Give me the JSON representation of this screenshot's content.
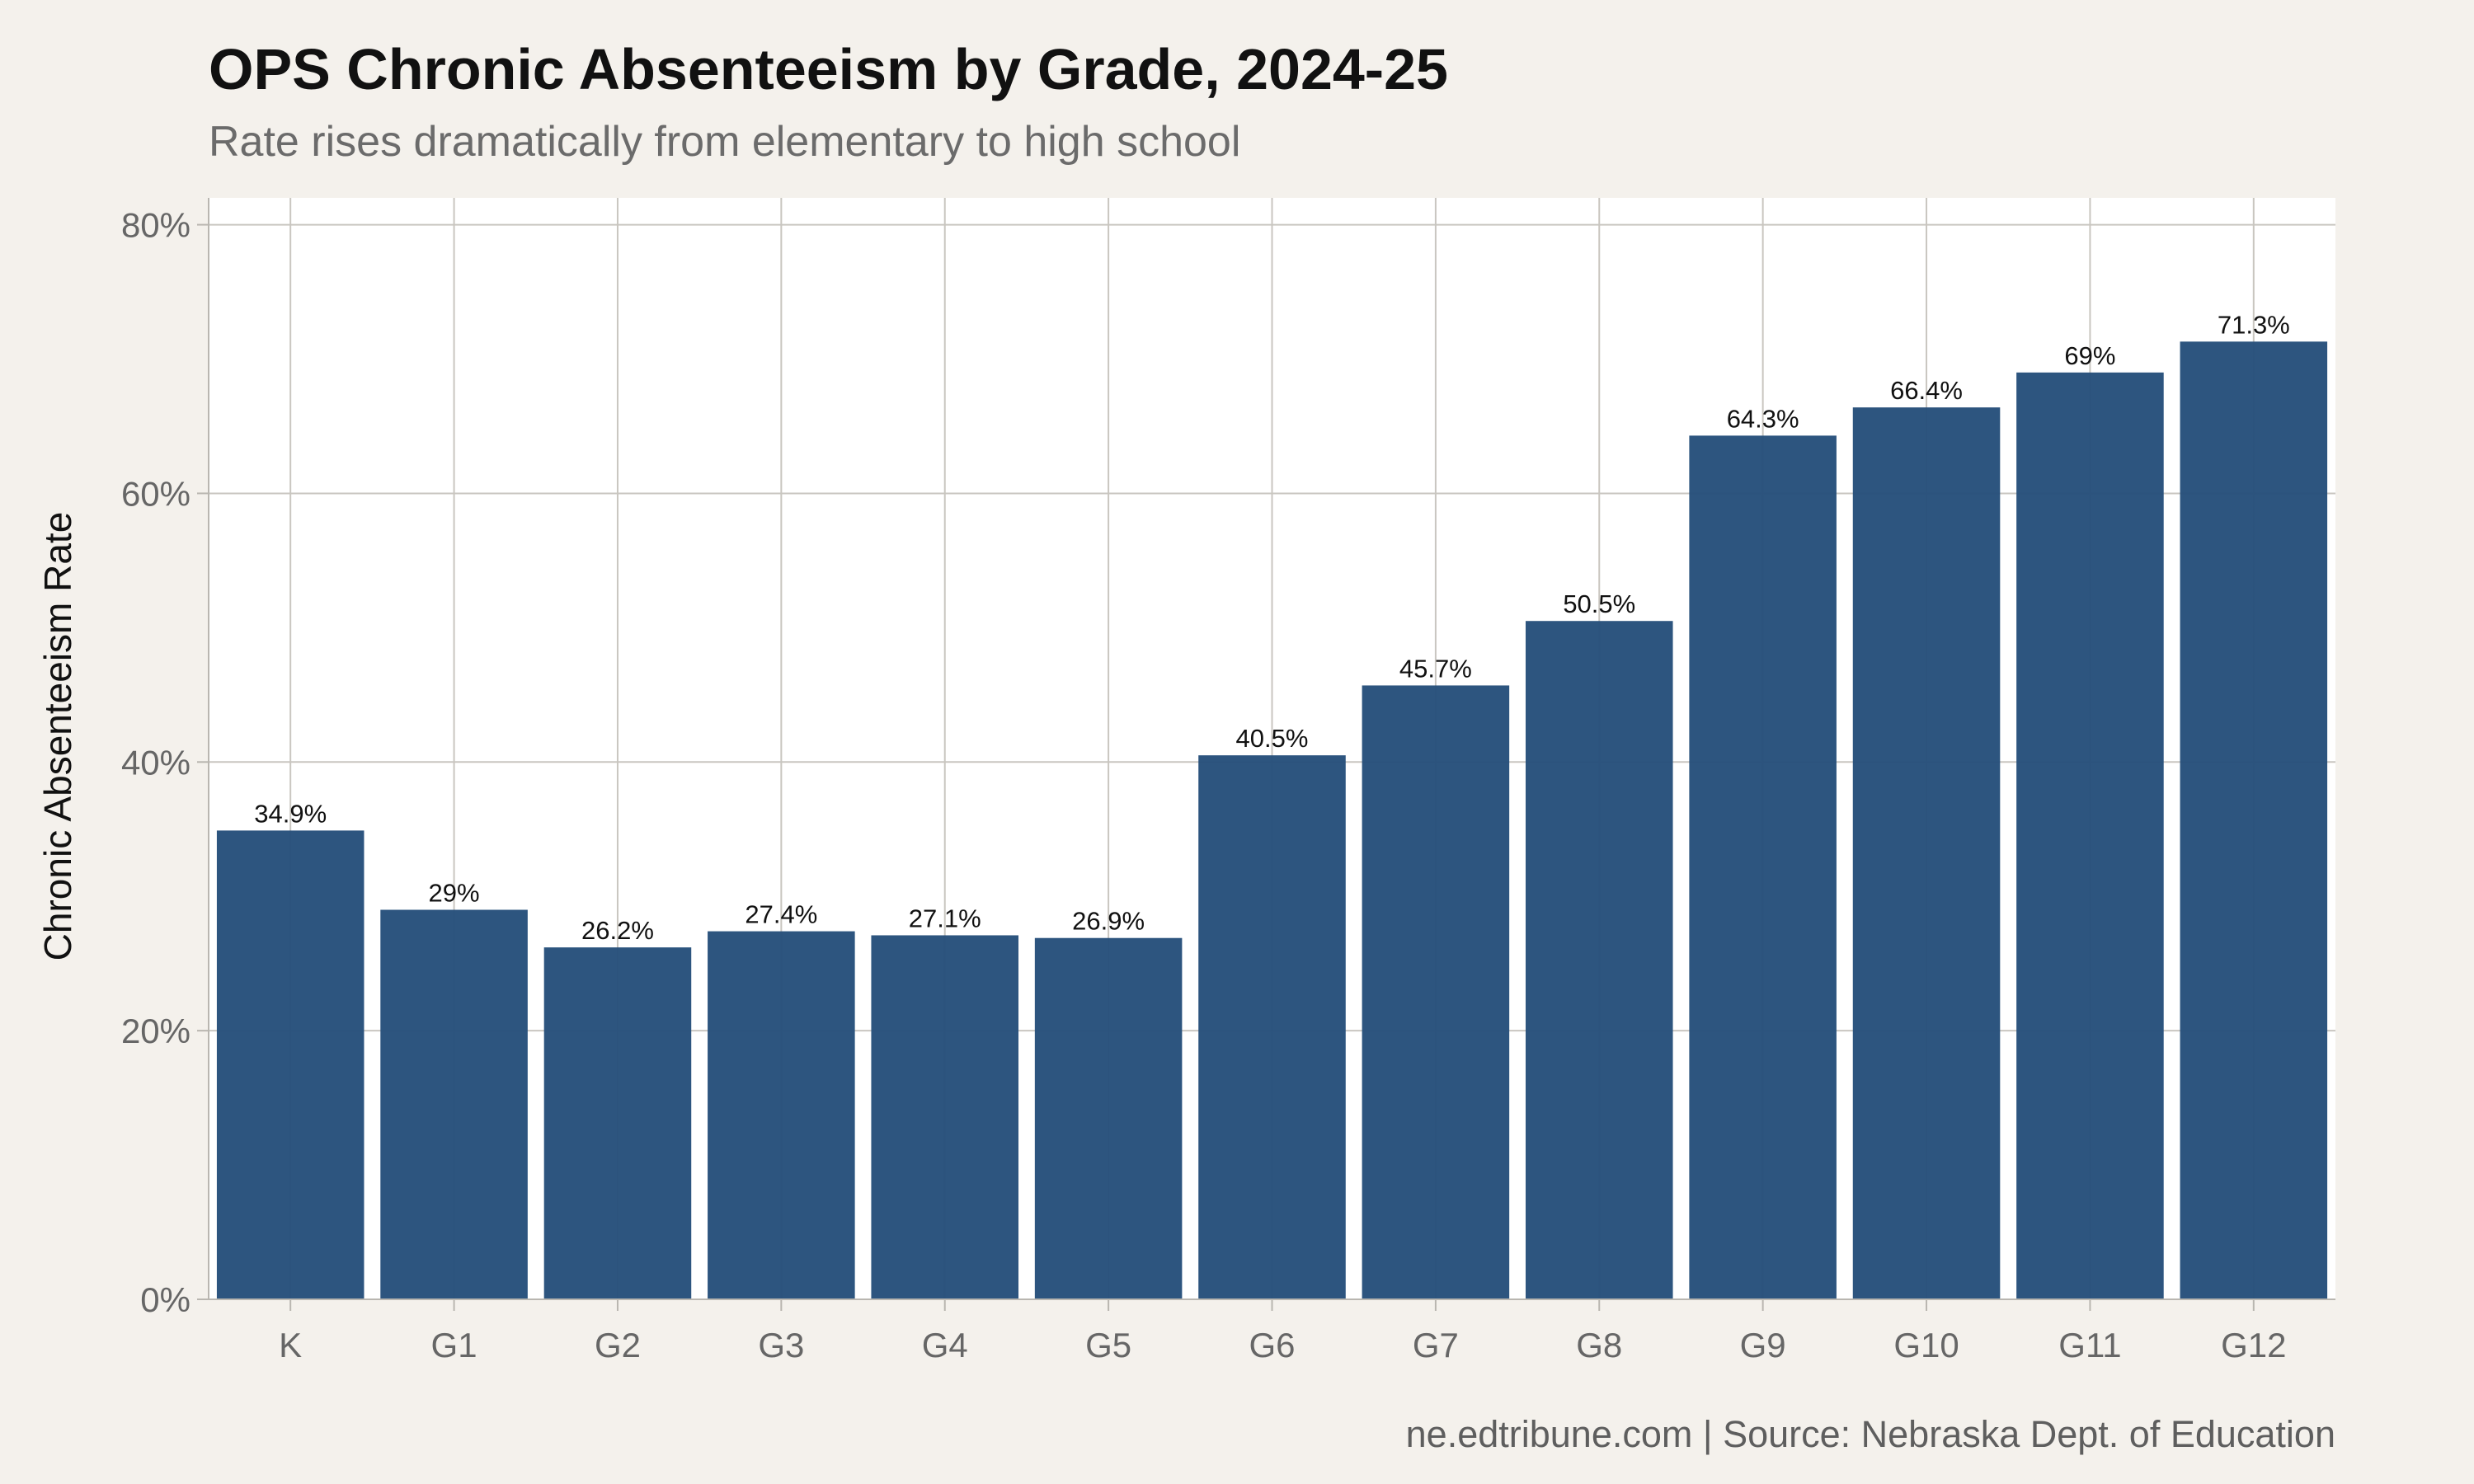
{
  "header": {
    "title": "OPS Chronic Absenteeism by Grade, 2024-25",
    "subtitle": "Rate rises dramatically from elementary to high school"
  },
  "footer": {
    "caption": "ne.edtribune.com | Source: Nebraska Dept. of Education"
  },
  "colors": {
    "background": "#f4f1ec",
    "panel": "#ffffff",
    "bar": "#264f7b",
    "grid": "#c9c6c0"
  },
  "chart_data": {
    "type": "bar",
    "title": "OPS Chronic Absenteeism by Grade, 2024-25",
    "subtitle": "Rate rises dramatically from elementary to high school",
    "xlabel": "",
    "ylabel": "Chronic Absenteeism Rate",
    "categories": [
      "K",
      "G1",
      "G2",
      "G3",
      "G4",
      "G5",
      "G6",
      "G7",
      "G8",
      "G9",
      "G10",
      "G11",
      "G12"
    ],
    "values": [
      34.9,
      29,
      26.2,
      27.4,
      27.1,
      26.9,
      40.5,
      45.7,
      50.5,
      64.3,
      66.4,
      69,
      71.3
    ],
    "value_labels": [
      "34.9%",
      "29%",
      "26.2%",
      "27.4%",
      "27.1%",
      "26.9%",
      "40.5%",
      "45.7%",
      "50.5%",
      "64.3%",
      "66.4%",
      "69%",
      "71.3%"
    ],
    "ylim": [
      0,
      82
    ],
    "yticks": [
      0,
      20,
      40,
      60,
      80
    ],
    "ytick_labels": [
      "0%",
      "20%",
      "40%",
      "60%",
      "80%"
    ],
    "grid": true,
    "legend": "none"
  }
}
